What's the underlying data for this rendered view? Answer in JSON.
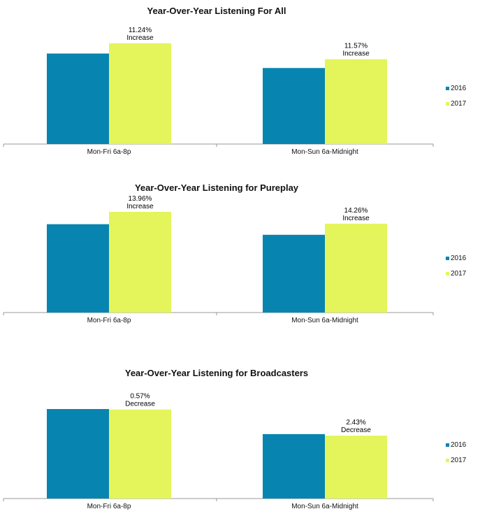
{
  "chart_data": [
    {
      "type": "bar",
      "title": "Year-Over-Year Listening For All",
      "categories": [
        "Mon-Fri 6a-8p",
        "Mon-Sun 6a-Midnight"
      ],
      "series": [
        {
          "name": "2016",
          "values": [
            100,
            84
          ]
        },
        {
          "name": "2017",
          "values": [
            111.24,
            93.72
          ]
        }
      ],
      "annotations": [
        {
          "pct": "11.24%",
          "label": "Increase"
        },
        {
          "pct": "11.57%",
          "label": "Increase"
        }
      ],
      "ylim": [
        0,
        115
      ]
    },
    {
      "type": "bar",
      "title": "Year-Over-Year Listening for Pureplay",
      "categories": [
        "Mon-Fri 6a-8p",
        "Mon-Sun 6a-Midnight"
      ],
      "series": [
        {
          "name": "2016",
          "values": [
            100,
            88
          ]
        },
        {
          "name": "2017",
          "values": [
            113.96,
            100.55
          ]
        }
      ],
      "annotations": [
        {
          "pct": "13.96%",
          "label": "Increase"
        },
        {
          "pct": "14.26%",
          "label": "Increase"
        }
      ],
      "ylim": [
        0,
        118
      ]
    },
    {
      "type": "bar",
      "title": "Year-Over-Year Listening for Broadcasters",
      "categories": [
        "Mon-Fri 6a-8p",
        "Mon-Sun 6a-Midnight"
      ],
      "series": [
        {
          "name": "2016",
          "values": [
            100,
            72
          ]
        },
        {
          "name": "2017",
          "values": [
            99.43,
            70.25
          ]
        }
      ],
      "annotations": [
        {
          "pct": "0.57%",
          "label": "Decrease"
        },
        {
          "pct": "2.43%",
          "label": "Decrease"
        }
      ],
      "ylim": [
        0,
        105
      ]
    }
  ],
  "colors": {
    "2016": "#0785b0",
    "2017": "#e3f55b",
    "axis": "#999999"
  }
}
